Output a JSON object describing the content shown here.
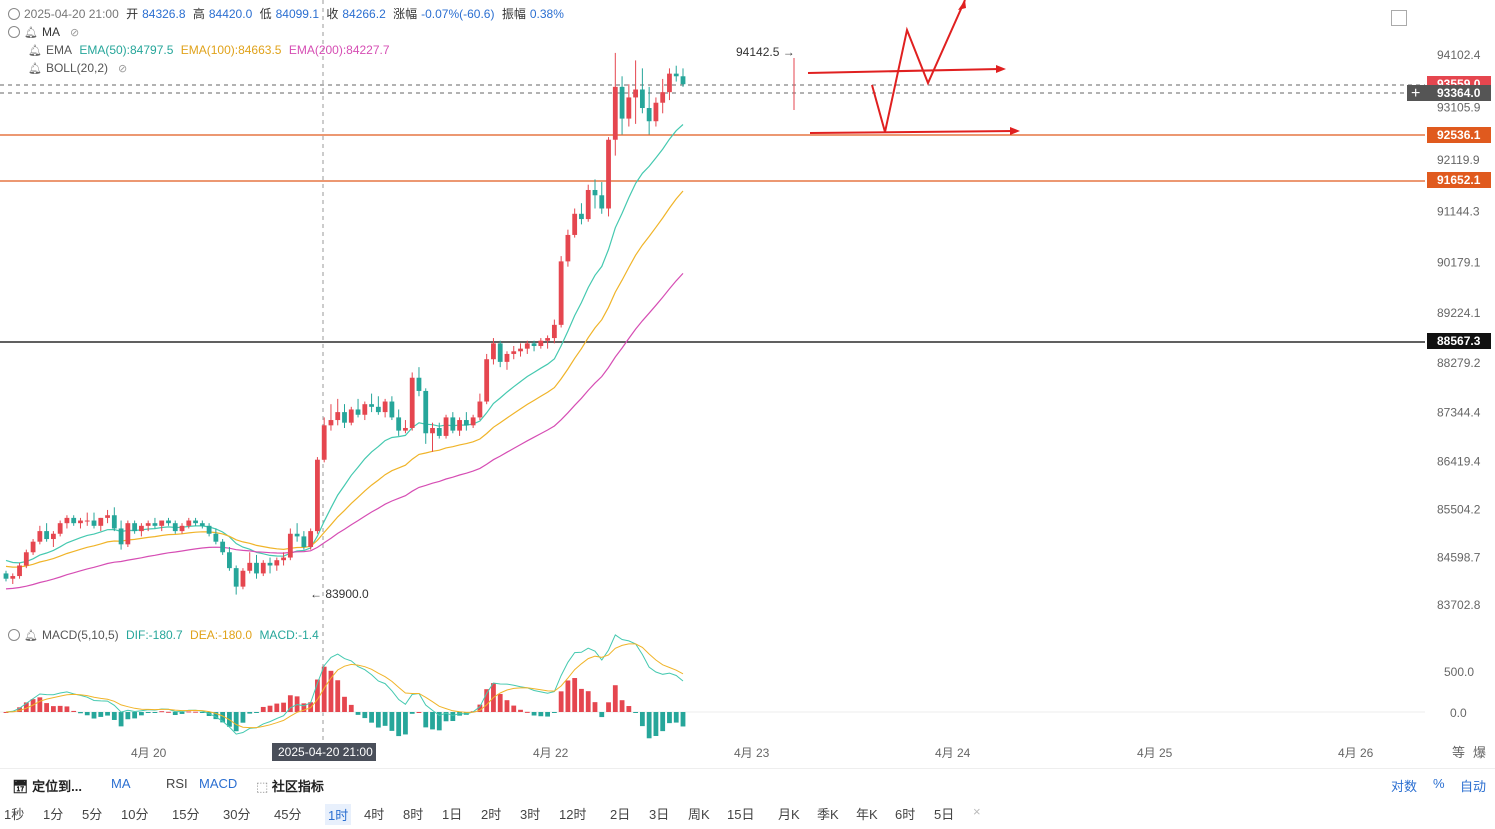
{
  "header": {
    "date": "2025-04-20 21:00",
    "open_label": "开",
    "open": "84326.8",
    "high_label": "高",
    "high": "84420.0",
    "low_label": "低",
    "low": "84099.1",
    "close_label": "收",
    "close": "84266.2",
    "change_label": "涨幅",
    "change": "-0.07%(-60.6)",
    "amp_label": "振幅",
    "amp": "0.38%"
  },
  "indicators": {
    "ma": "MA",
    "ema": "EMA",
    "ema50": "EMA(50):84797.5",
    "ema100": "EMA(100):84663.5",
    "ema200": "EMA(200):84227.7",
    "boll": "BOLL(20,2)",
    "macd": "MACD(5,10,5)",
    "dif": "DIF:-180.7",
    "dea": "DEA:-180.0",
    "macd_val": "MACD:-1.4"
  },
  "colors": {
    "up": "#e5464f",
    "down": "#26a69a",
    "ema50": "#45c9b0",
    "ema100": "#f0b429",
    "ema200": "#d64eb4",
    "hline": "#e05a1e",
    "black_line": "#000000"
  },
  "price_axis": [
    "94102.4",
    "93105.9",
    "92119.9",
    "91144.3",
    "90179.1",
    "89224.1",
    "88279.2",
    "87344.4",
    "86419.4",
    "85504.2",
    "84598.7",
    "83702.8"
  ],
  "price_tags": {
    "current": "93364.0",
    "top_hidden": "93559.0",
    "level1": "92536.1",
    "level2": "91652.1",
    "level3": "88567.3"
  },
  "annotations": {
    "high_mark": "94142.5 →",
    "low_mark": "← 83900.0"
  },
  "macd_axis": [
    "500.0",
    "0.0"
  ],
  "time_axis": [
    "4月 20",
    "4月 22",
    "4月 23",
    "4月 24",
    "4月 25",
    "4月 26"
  ],
  "crosshair_time": "2025-04-20 21:00",
  "bottom_right_icons": [
    "等",
    "爆"
  ],
  "toolbar1": {
    "locate": "定位到...",
    "ma": "MA",
    "rsi": "RSI",
    "macd": "MACD",
    "community": "社区指标",
    "log": "对数",
    "percent": "%",
    "auto": "自动"
  },
  "timeframes": [
    "1秒",
    "1分",
    "5分",
    "10分",
    "15分",
    "30分",
    "45分",
    "1时",
    "4时",
    "8时",
    "1日",
    "2时",
    "3时",
    "12时",
    "2日",
    "3日",
    "周K",
    "15日",
    "月K",
    "季K",
    "年K",
    "6时",
    "5日",
    "×"
  ],
  "active_timeframe": "1时",
  "chart_data": {
    "type": "candlestick",
    "candles": [
      [
        84300,
        84350,
        84150,
        84200
      ],
      [
        84200,
        84300,
        84100,
        84250
      ],
      [
        84250,
        84500,
        84200,
        84450
      ],
      [
        84450,
        84750,
        84400,
        84700
      ],
      [
        84700,
        84950,
        84650,
        84900
      ],
      [
        84900,
        85200,
        84850,
        85100
      ],
      [
        85100,
        85250,
        84900,
        84950
      ],
      [
        84950,
        85100,
        84800,
        85050
      ],
      [
        85050,
        85300,
        85000,
        85250
      ],
      [
        85250,
        85400,
        85150,
        85350
      ],
      [
        85350,
        85400,
        85200,
        85250
      ],
      [
        85250,
        85350,
        85150,
        85300
      ],
      [
        85300,
        85450,
        85200,
        85300
      ],
      [
        85300,
        85450,
        85150,
        85200
      ],
      [
        85200,
        85350,
        85100,
        85350
      ],
      [
        85350,
        85500,
        85250,
        85400
      ],
      [
        85400,
        85550,
        85100,
        85150
      ],
      [
        85150,
        85300,
        84750,
        84850
      ],
      [
        84850,
        85300,
        84800,
        85250
      ],
      [
        85250,
        85300,
        85050,
        85100
      ],
      [
        85100,
        85250,
        85000,
        85200
      ],
      [
        85200,
        85300,
        85100,
        85250
      ],
      [
        85250,
        85350,
        85150,
        85200
      ],
      [
        85200,
        85300,
        85100,
        85300
      ],
      [
        85300,
        85350,
        85200,
        85250
      ],
      [
        85250,
        85300,
        85050,
        85100
      ],
      [
        85100,
        85250,
        85050,
        85200
      ],
      [
        85200,
        85350,
        85150,
        85300
      ],
      [
        85300,
        85350,
        85200,
        85250
      ],
      [
        85250,
        85300,
        85150,
        85200
      ],
      [
        85200,
        85250,
        85000,
        85050
      ],
      [
        85050,
        85150,
        84850,
        84900
      ],
      [
        84900,
        84950,
        84650,
        84700
      ],
      [
        84700,
        84800,
        84350,
        84400
      ],
      [
        84400,
        84450,
        83900,
        84050
      ],
      [
        84050,
        84400,
        84000,
        84350
      ],
      [
        84350,
        84700,
        84300,
        84500
      ],
      [
        84500,
        84650,
        84200,
        84300
      ],
      [
        84300,
        84550,
        84250,
        84500
      ],
      [
        84500,
        84600,
        84300,
        84450
      ],
      [
        84450,
        84600,
        84350,
        84550
      ],
      [
        84550,
        84700,
        84450,
        84600
      ],
      [
        84600,
        85150,
        84550,
        85050
      ],
      [
        85050,
        85250,
        84900,
        85000
      ],
      [
        85000,
        85100,
        84750,
        84800
      ],
      [
        84800,
        85150,
        84750,
        85100
      ],
      [
        85100,
        86500,
        85050,
        86450
      ],
      [
        86450,
        87250,
        86400,
        87100
      ],
      [
        87100,
        87500,
        87000,
        87200
      ],
      [
        87200,
        87600,
        87100,
        87350
      ],
      [
        87350,
        87500,
        87050,
        87150
      ],
      [
        87150,
        87450,
        87100,
        87400
      ],
      [
        87400,
        87600,
        87250,
        87300
      ],
      [
        87300,
        87550,
        87200,
        87500
      ],
      [
        87500,
        87700,
        87350,
        87450
      ],
      [
        87450,
        87650,
        87300,
        87350
      ],
      [
        87350,
        87600,
        87250,
        87550
      ],
      [
        87550,
        87650,
        87200,
        87250
      ],
      [
        87250,
        87400,
        86900,
        87000
      ],
      [
        87000,
        87200,
        86950,
        87050
      ],
      [
        87050,
        88100,
        87000,
        88000
      ],
      [
        88000,
        88200,
        87650,
        87750
      ],
      [
        87750,
        87800,
        86750,
        86950
      ],
      [
        86950,
        87150,
        86600,
        87050
      ],
      [
        87050,
        87150,
        86850,
        86900
      ],
      [
        86900,
        87300,
        86850,
        87250
      ],
      [
        87250,
        87350,
        86950,
        87000
      ],
      [
        87000,
        87250,
        86900,
        87200
      ],
      [
        87200,
        87350,
        87000,
        87100
      ],
      [
        87100,
        87300,
        87050,
        87250
      ],
      [
        87250,
        87700,
        87200,
        87550
      ],
      [
        87550,
        88450,
        87500,
        88350
      ],
      [
        88350,
        88750,
        88250,
        88650
      ],
      [
        88650,
        88700,
        88200,
        88300
      ],
      [
        88300,
        88500,
        88150,
        88450
      ],
      [
        88450,
        88600,
        88350,
        88500
      ],
      [
        88500,
        88650,
        88400,
        88550
      ],
      [
        88550,
        88700,
        88450,
        88650
      ],
      [
        88650,
        88700,
        88500,
        88600
      ],
      [
        88600,
        88750,
        88550,
        88700
      ],
      [
        88700,
        88800,
        88550,
        88750
      ],
      [
        88750,
        89100,
        88650,
        89000
      ],
      [
        89000,
        90300,
        88950,
        90200
      ],
      [
        90200,
        90800,
        90100,
        90700
      ],
      [
        90700,
        91200,
        90650,
        91100
      ],
      [
        91100,
        91300,
        90900,
        91000
      ],
      [
        91000,
        91650,
        90950,
        91550
      ],
      [
        91550,
        91750,
        91200,
        91450
      ],
      [
        91450,
        91700,
        91100,
        91200
      ],
      [
        91200,
        92550,
        91050,
        92500
      ],
      [
        92500,
        94142,
        92200,
        93500
      ],
      [
        93500,
        93700,
        92600,
        92900
      ],
      [
        92900,
        93550,
        92750,
        93300
      ],
      [
        93300,
        94000,
        92800,
        93450
      ],
      [
        93450,
        93850,
        93000,
        93100
      ],
      [
        93100,
        93500,
        92600,
        92850
      ],
      [
        92850,
        93300,
        92750,
        93200
      ],
      [
        93200,
        93650,
        93000,
        93400
      ],
      [
        93400,
        93850,
        93250,
        93750
      ],
      [
        93750,
        93900,
        93600,
        93700
      ],
      [
        93700,
        93850,
        93500,
        93550
      ]
    ],
    "projection": [
      [
        872,
        85
      ],
      [
        885,
        132
      ],
      [
        907,
        30
      ],
      [
        928,
        83
      ],
      [
        965,
        0
      ]
    ],
    "macd_note": "MACD(5,10,5)"
  }
}
